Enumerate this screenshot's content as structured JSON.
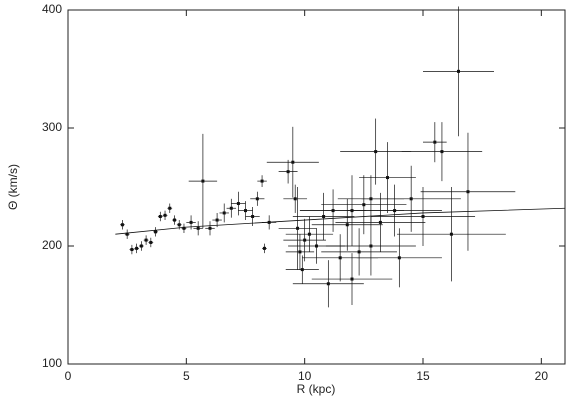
{
  "chart_data": {
    "type": "scatter",
    "xlabel": "R (kpc)",
    "ylabel": "Θ (km/s)",
    "xlim": [
      0,
      21
    ],
    "ylim": [
      100,
      400
    ],
    "xticks": [
      0,
      5,
      10,
      15,
      20
    ],
    "yticks": [
      100,
      200,
      300,
      400
    ],
    "color": "#111111",
    "points": {
      "x": [
        2.3,
        2.5,
        2.7,
        2.9,
        3.1,
        3.3,
        3.5,
        3.7,
        3.9,
        4.1,
        4.3,
        4.5,
        4.7,
        4.9,
        5.2,
        5.5,
        5.7,
        6.0,
        6.3,
        6.6,
        6.9,
        7.2,
        7.5,
        7.8,
        8.0,
        8.2,
        8.3,
        8.5,
        9.3,
        9.5,
        9.6,
        9.7,
        9.8,
        9.9,
        10.0,
        10.2,
        10.5,
        10.8,
        11.0,
        11.2,
        11.5,
        11.8,
        12.0,
        12.3,
        12.5,
        12.8,
        13.0,
        13.2,
        13.5,
        13.8,
        14.0,
        14.5,
        15.0,
        15.5,
        15.8,
        16.2,
        16.5,
        16.9,
        12.0,
        12.8
      ],
      "y": [
        218,
        210,
        197,
        198,
        200,
        205,
        203,
        212,
        225,
        226,
        232,
        222,
        218,
        215,
        220,
        215,
        255,
        215,
        222,
        228,
        232,
        236,
        230,
        225,
        240,
        255,
        198,
        220,
        263,
        271,
        240,
        215,
        195,
        180,
        205,
        210,
        200,
        225,
        168,
        230,
        190,
        218,
        172,
        195,
        235,
        240,
        280,
        220,
        258,
        230,
        190,
        240,
        225,
        288,
        280,
        210,
        348,
        246,
        230,
        200
      ],
      "xerr": [
        0.1,
        0.1,
        0.1,
        0.1,
        0.1,
        0.1,
        0.1,
        0.1,
        0.1,
        0.1,
        0.1,
        0.1,
        0.1,
        0.1,
        0.2,
        0.2,
        0.6,
        0.2,
        0.2,
        0.2,
        0.2,
        0.3,
        0.3,
        0.3,
        0.3,
        0.2,
        0.1,
        0.3,
        0.4,
        1.1,
        0.5,
        0.8,
        0.6,
        0.7,
        0.9,
        1.0,
        1.2,
        1.3,
        1.5,
        1.4,
        1.6,
        1.5,
        1.7,
        1.6,
        1.8,
        1.4,
        1.5,
        1.9,
        1.2,
        2.0,
        1.8,
        2.1,
        2.2,
        0.5,
        1.7,
        2.3,
        1.5,
        2.0,
        2.2,
        1.9
      ],
      "yerr": [
        4,
        4,
        4,
        4,
        4,
        4,
        4,
        4,
        4,
        4,
        4,
        4,
        4,
        4,
        6,
        6,
        40,
        6,
        6,
        8,
        8,
        10,
        8,
        8,
        6,
        5,
        4,
        6,
        10,
        30,
        12,
        35,
        15,
        12,
        18,
        15,
        15,
        20,
        20,
        18,
        20,
        22,
        22,
        20,
        25,
        20,
        28,
        25,
        30,
        22,
        25,
        28,
        25,
        17,
        25,
        40,
        55,
        50,
        30,
        25
      ]
    },
    "curve": {
      "x": [
        2,
        5,
        10,
        15,
        21
      ],
      "y": [
        210,
        216,
        222,
        228,
        232
      ]
    }
  }
}
